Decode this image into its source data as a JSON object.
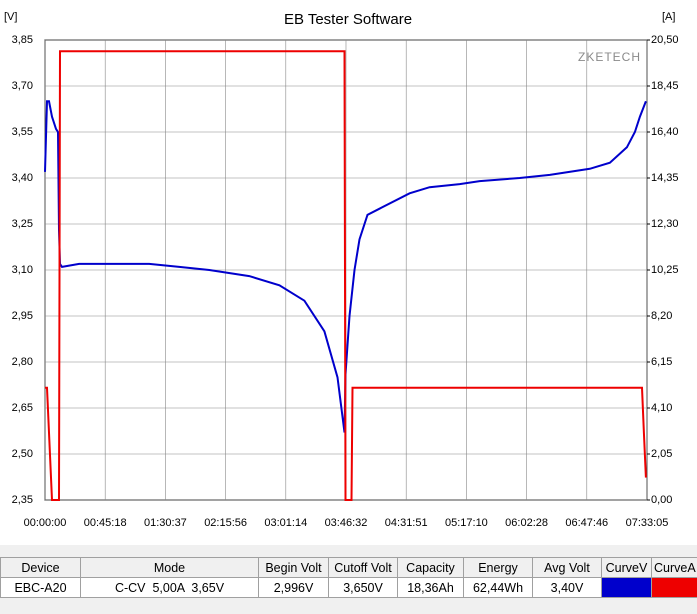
{
  "chart_data": {
    "type": "line",
    "title": "EB Tester Software",
    "y_label": "[V]",
    "y2_label": "[A]",
    "watermark": "ZKETECH",
    "xlim": [
      0,
      27185
    ],
    "xticks": [
      {
        "value": 0,
        "label": "00:00:00"
      },
      {
        "value": 2718,
        "label": "00:45:18"
      },
      {
        "value": 5437,
        "label": "01:30:37"
      },
      {
        "value": 8156,
        "label": "02:15:56"
      },
      {
        "value": 10874,
        "label": "03:01:14"
      },
      {
        "value": 13592,
        "label": "03:46:32"
      },
      {
        "value": 16311,
        "label": "04:31:51"
      },
      {
        "value": 19030,
        "label": "05:17:10"
      },
      {
        "value": 21748,
        "label": "06:02:28"
      },
      {
        "value": 24466,
        "label": "06:47:46"
      },
      {
        "value": 27185,
        "label": "07:33:05"
      }
    ],
    "ylim": [
      2.35,
      3.85
    ],
    "yticks": [
      {
        "value": 2.35,
        "label": "2,35"
      },
      {
        "value": 2.5,
        "label": "2,50"
      },
      {
        "value": 2.65,
        "label": "2,65"
      },
      {
        "value": 2.8,
        "label": "2,80"
      },
      {
        "value": 2.95,
        "label": "2,95"
      },
      {
        "value": 3.1,
        "label": "3,10"
      },
      {
        "value": 3.25,
        "label": "3,25"
      },
      {
        "value": 3.4,
        "label": "3,40"
      },
      {
        "value": 3.55,
        "label": "3,55"
      },
      {
        "value": 3.7,
        "label": "3,70"
      },
      {
        "value": 3.85,
        "label": "3,85"
      }
    ],
    "y2lim": [
      0,
      20.5
    ],
    "y2ticks": [
      {
        "value": 0,
        "label": "0,00"
      },
      {
        "value": 2.05,
        "label": "2,05"
      },
      {
        "value": 4.1,
        "label": "4,10"
      },
      {
        "value": 6.15,
        "label": "6,15"
      },
      {
        "value": 8.2,
        "label": "8,20"
      },
      {
        "value": 10.25,
        "label": "10,25"
      },
      {
        "value": 12.3,
        "label": "12,30"
      },
      {
        "value": 14.35,
        "label": "14,35"
      },
      {
        "value": 16.4,
        "label": "16,40"
      },
      {
        "value": 18.45,
        "label": "18,45"
      },
      {
        "value": 20.5,
        "label": "20,50"
      }
    ],
    "grid": true,
    "series": [
      {
        "color": "#0000cc",
        "x": [
          0,
          90,
          181,
          317,
          498,
          588,
          633,
          678,
          769,
          1538,
          4704,
          6061,
          7418,
          9227,
          10584,
          11715,
          12619,
          13207,
          13524,
          13569,
          13750,
          13976,
          14202,
          14564,
          15107,
          16464,
          17368,
          18725,
          19629,
          21438,
          22795,
          24604,
          25509,
          26278,
          26640,
          26866,
          27137
        ],
        "values": [
          3.42,
          3.65,
          3.65,
          3.6,
          3.56,
          3.55,
          3.23,
          3.12,
          3.11,
          3.12,
          3.12,
          3.11,
          3.1,
          3.08,
          3.05,
          3.0,
          2.9,
          2.75,
          2.57,
          2.76,
          2.95,
          3.1,
          3.2,
          3.28,
          3.3,
          3.35,
          3.37,
          3.38,
          3.39,
          3.4,
          3.41,
          3.43,
          3.45,
          3.5,
          3.55,
          3.6,
          3.65
        ]
      },
      {
        "color": "#ee0000",
        "axis": "y2",
        "x": [
          0,
          90,
          180,
          270,
          317,
          633,
          678,
          13524,
          13569,
          13840,
          13886,
          26957,
          27047,
          27137
        ],
        "values": [
          5.0,
          5.0,
          3.0,
          1.0,
          0,
          0,
          20.0,
          20.0,
          0,
          0,
          5.0,
          5.0,
          3.0,
          1.0
        ]
      }
    ]
  },
  "table": {
    "columns": [
      "Device",
      "Mode",
      "Begin Volt",
      "Cutoff Volt",
      "Capacity",
      "Energy",
      "Avg Volt",
      "CurveV",
      "CurveA"
    ],
    "rows": [
      [
        "EBC-A20",
        "C-CV  5,00A  3,65V",
        "2,996V",
        "3,650V",
        "18,36Ah",
        "62,44Wh",
        "3,40V"
      ]
    ]
  }
}
